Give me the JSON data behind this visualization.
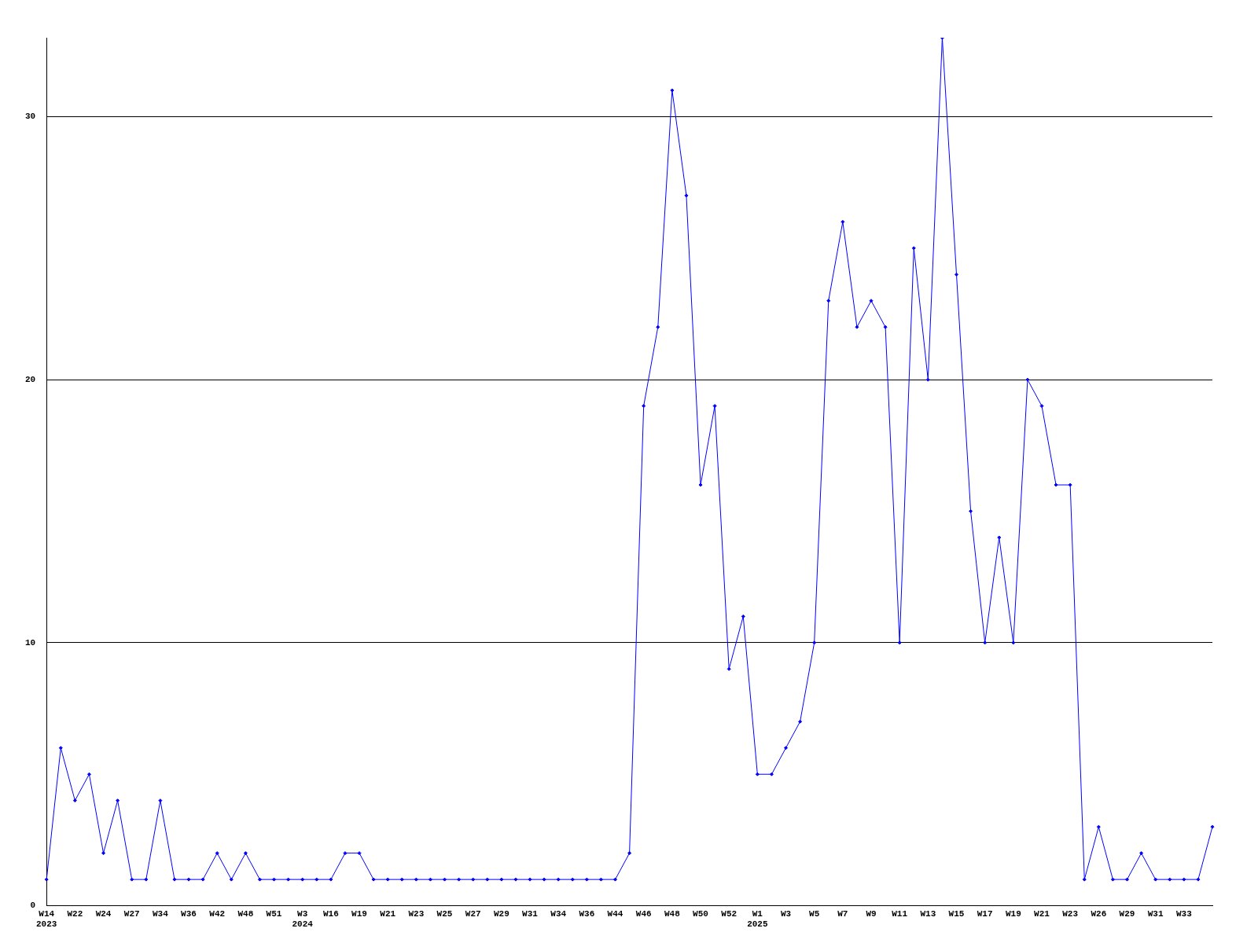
{
  "chart_data": {
    "type": "line",
    "categories": [
      "W14\n2023",
      null,
      "W22",
      null,
      "W24",
      null,
      "W27",
      null,
      "W34",
      null,
      "W36",
      null,
      "W42",
      null,
      "W48",
      null,
      "W51",
      null,
      "W3\n2024",
      null,
      "W16",
      null,
      "W19",
      null,
      "W21",
      null,
      "W23",
      null,
      "W25",
      null,
      "W27",
      null,
      "W29",
      null,
      "W31",
      null,
      "W34",
      null,
      "W36",
      null,
      "W44",
      null,
      "W46",
      null,
      "W48",
      null,
      "W50",
      null,
      "W52",
      null,
      "W1\n2025",
      null,
      "W3",
      null,
      "W5",
      null,
      "W7",
      null,
      "W9",
      null,
      "W11",
      null,
      "W13",
      null,
      "W15",
      null,
      "W17",
      null,
      "W19",
      null,
      "W21",
      null,
      "W23",
      null,
      "W26",
      null,
      "W29",
      null,
      "W31",
      null,
      "W33",
      null,
      null
    ],
    "series": [
      {
        "color": "#0000ff",
        "values": [
          1,
          6,
          4,
          5,
          2,
          4,
          1,
          1,
          4,
          1,
          1,
          1,
          2,
          1,
          2,
          1,
          1,
          1,
          1,
          1,
          1,
          2,
          2,
          1,
          1,
          1,
          1,
          1,
          1,
          1,
          1,
          1,
          1,
          1,
          1,
          1,
          1,
          1,
          1,
          1,
          1,
          2,
          19,
          22,
          31,
          27,
          16,
          19,
          9,
          11,
          5,
          5,
          6,
          7,
          10,
          23,
          26,
          22,
          23,
          22,
          10,
          25,
          20,
          33,
          24,
          15,
          10,
          14,
          10,
          20,
          19,
          16,
          16,
          1,
          3,
          1,
          1,
          2,
          1,
          1,
          1,
          1,
          3
        ]
      }
    ],
    "ylim": [
      0,
      33
    ],
    "yticks": [
      0,
      10,
      20,
      30
    ],
    "grid": "y",
    "marker": "diamond",
    "line_style": "solid"
  }
}
